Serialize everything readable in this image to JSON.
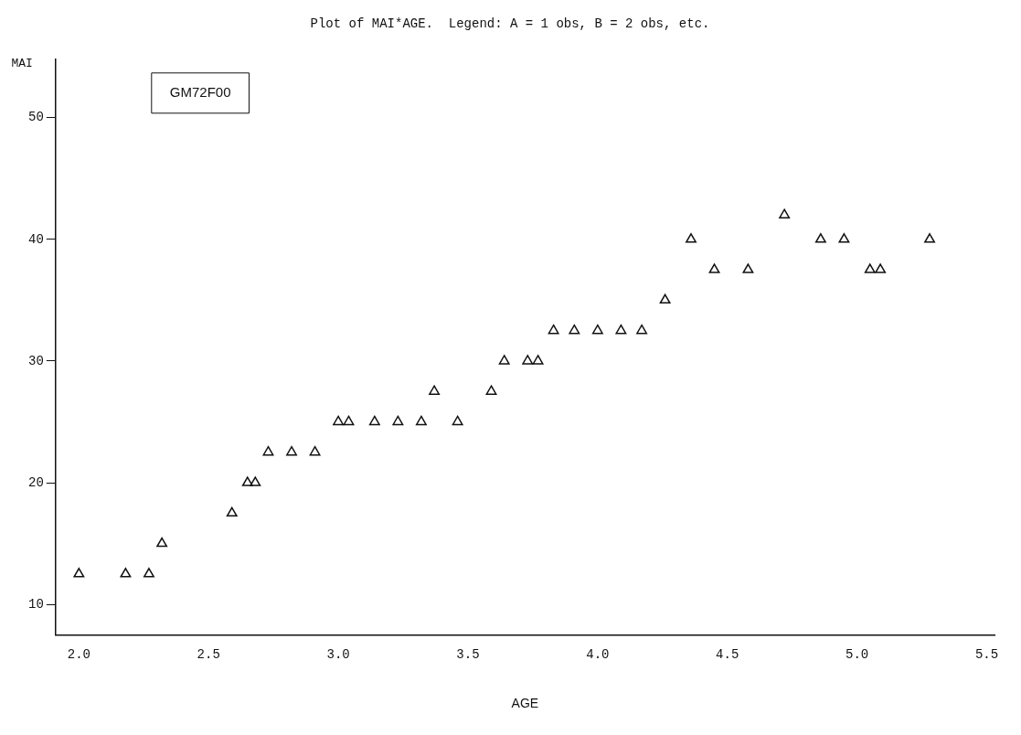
{
  "chart_data": {
    "type": "scatter",
    "title": "Plot of MAI*AGE.  Legend: A = 1 obs, B = 2 obs, etc.",
    "xlabel": "AGE",
    "ylabel": "MAI",
    "annotations": [
      "GM72F00"
    ],
    "series": [
      {
        "color": "#111111",
        "x": [
          2.0,
          2.18,
          2.27,
          2.32,
          2.59,
          2.65,
          2.68,
          2.73,
          2.82,
          2.91,
          3.0,
          3.04,
          3.14,
          3.23,
          3.32,
          3.37,
          3.46,
          3.59,
          3.64,
          3.73,
          3.77,
          3.83,
          3.91,
          4.0,
          4.09,
          4.17,
          4.26,
          4.36,
          4.45,
          4.58,
          4.72,
          4.86,
          4.95,
          5.05,
          5.09,
          5.28
        ],
        "values": [
          12.5,
          12.5,
          12.5,
          15,
          17.5,
          20,
          20,
          22.5,
          22.5,
          22.5,
          25,
          25,
          25,
          25,
          25,
          27.5,
          25,
          27.5,
          30,
          30,
          30,
          32.5,
          32.5,
          32.5,
          32.5,
          32.5,
          35,
          40,
          37.5,
          37.5,
          42,
          40,
          40,
          37.5,
          37.5,
          40
        ]
      }
    ],
    "marker": "triangle",
    "grid": false,
    "legend": false,
    "xlim": [
      1.91,
      5.53
    ],
    "xticks": [
      {
        "value": 2,
        "label": "2.0"
      },
      {
        "value": 2.5,
        "label": "2.5"
      },
      {
        "value": 3,
        "label": "3.0"
      },
      {
        "value": 3.5,
        "label": "3.5"
      },
      {
        "value": 4,
        "label": "4.0"
      },
      {
        "value": 4.5,
        "label": "4.5"
      },
      {
        "value": 5,
        "label": "5.0"
      },
      {
        "value": 5.5,
        "label": "5.5"
      }
    ],
    "ylim": [
      7.5,
      54.8
    ],
    "yticks": [
      10,
      20,
      30,
      40,
      50
    ]
  }
}
